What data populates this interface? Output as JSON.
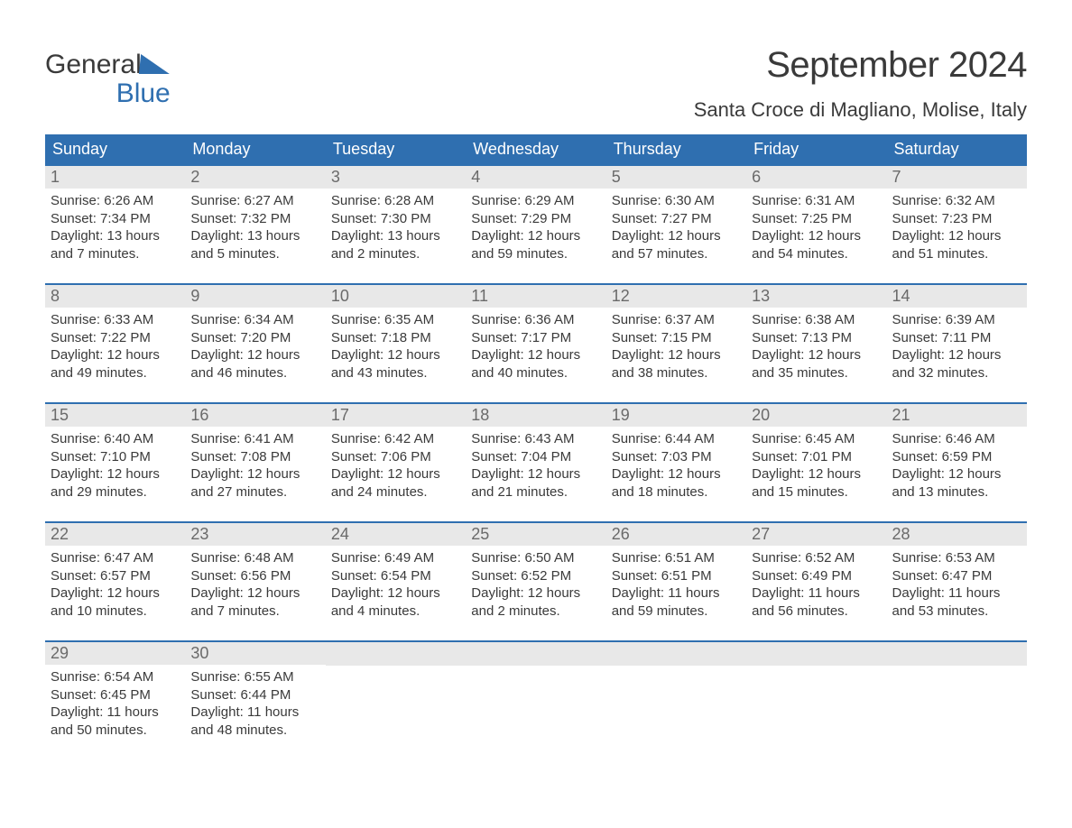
{
  "logo": {
    "top": "General",
    "bottom": "Blue"
  },
  "title": "September 2024",
  "location": "Santa Croce di Magliano, Molise, Italy",
  "colors": {
    "header_bg": "#2f6fb0",
    "header_fg": "#ffffff",
    "daynum_bg": "#e8e8e8",
    "daynum_fg": "#6a6a6a",
    "body_text": "#3a3a3a",
    "row_border": "#2f6fb0",
    "page_bg": "#ffffff"
  },
  "weekdays": [
    "Sunday",
    "Monday",
    "Tuesday",
    "Wednesday",
    "Thursday",
    "Friday",
    "Saturday"
  ],
  "days": [
    {
      "n": "1",
      "sunrise": "6:26 AM",
      "sunset": "7:34 PM",
      "dl1": "Daylight: 13 hours",
      "dl2": "and 7 minutes."
    },
    {
      "n": "2",
      "sunrise": "6:27 AM",
      "sunset": "7:32 PM",
      "dl1": "Daylight: 13 hours",
      "dl2": "and 5 minutes."
    },
    {
      "n": "3",
      "sunrise": "6:28 AM",
      "sunset": "7:30 PM",
      "dl1": "Daylight: 13 hours",
      "dl2": "and 2 minutes."
    },
    {
      "n": "4",
      "sunrise": "6:29 AM",
      "sunset": "7:29 PM",
      "dl1": "Daylight: 12 hours",
      "dl2": "and 59 minutes."
    },
    {
      "n": "5",
      "sunrise": "6:30 AM",
      "sunset": "7:27 PM",
      "dl1": "Daylight: 12 hours",
      "dl2": "and 57 minutes."
    },
    {
      "n": "6",
      "sunrise": "6:31 AM",
      "sunset": "7:25 PM",
      "dl1": "Daylight: 12 hours",
      "dl2": "and 54 minutes."
    },
    {
      "n": "7",
      "sunrise": "6:32 AM",
      "sunset": "7:23 PM",
      "dl1": "Daylight: 12 hours",
      "dl2": "and 51 minutes."
    },
    {
      "n": "8",
      "sunrise": "6:33 AM",
      "sunset": "7:22 PM",
      "dl1": "Daylight: 12 hours",
      "dl2": "and 49 minutes."
    },
    {
      "n": "9",
      "sunrise": "6:34 AM",
      "sunset": "7:20 PM",
      "dl1": "Daylight: 12 hours",
      "dl2": "and 46 minutes."
    },
    {
      "n": "10",
      "sunrise": "6:35 AM",
      "sunset": "7:18 PM",
      "dl1": "Daylight: 12 hours",
      "dl2": "and 43 minutes."
    },
    {
      "n": "11",
      "sunrise": "6:36 AM",
      "sunset": "7:17 PM",
      "dl1": "Daylight: 12 hours",
      "dl2": "and 40 minutes."
    },
    {
      "n": "12",
      "sunrise": "6:37 AM",
      "sunset": "7:15 PM",
      "dl1": "Daylight: 12 hours",
      "dl2": "and 38 minutes."
    },
    {
      "n": "13",
      "sunrise": "6:38 AM",
      "sunset": "7:13 PM",
      "dl1": "Daylight: 12 hours",
      "dl2": "and 35 minutes."
    },
    {
      "n": "14",
      "sunrise": "6:39 AM",
      "sunset": "7:11 PM",
      "dl1": "Daylight: 12 hours",
      "dl2": "and 32 minutes."
    },
    {
      "n": "15",
      "sunrise": "6:40 AM",
      "sunset": "7:10 PM",
      "dl1": "Daylight: 12 hours",
      "dl2": "and 29 minutes."
    },
    {
      "n": "16",
      "sunrise": "6:41 AM",
      "sunset": "7:08 PM",
      "dl1": "Daylight: 12 hours",
      "dl2": "and 27 minutes."
    },
    {
      "n": "17",
      "sunrise": "6:42 AM",
      "sunset": "7:06 PM",
      "dl1": "Daylight: 12 hours",
      "dl2": "and 24 minutes."
    },
    {
      "n": "18",
      "sunrise": "6:43 AM",
      "sunset": "7:04 PM",
      "dl1": "Daylight: 12 hours",
      "dl2": "and 21 minutes."
    },
    {
      "n": "19",
      "sunrise": "6:44 AM",
      "sunset": "7:03 PM",
      "dl1": "Daylight: 12 hours",
      "dl2": "and 18 minutes."
    },
    {
      "n": "20",
      "sunrise": "6:45 AM",
      "sunset": "7:01 PM",
      "dl1": "Daylight: 12 hours",
      "dl2": "and 15 minutes."
    },
    {
      "n": "21",
      "sunrise": "6:46 AM",
      "sunset": "6:59 PM",
      "dl1": "Daylight: 12 hours",
      "dl2": "and 13 minutes."
    },
    {
      "n": "22",
      "sunrise": "6:47 AM",
      "sunset": "6:57 PM",
      "dl1": "Daylight: 12 hours",
      "dl2": "and 10 minutes."
    },
    {
      "n": "23",
      "sunrise": "6:48 AM",
      "sunset": "6:56 PM",
      "dl1": "Daylight: 12 hours",
      "dl2": "and 7 minutes."
    },
    {
      "n": "24",
      "sunrise": "6:49 AM",
      "sunset": "6:54 PM",
      "dl1": "Daylight: 12 hours",
      "dl2": "and 4 minutes."
    },
    {
      "n": "25",
      "sunrise": "6:50 AM",
      "sunset": "6:52 PM",
      "dl1": "Daylight: 12 hours",
      "dl2": "and 2 minutes."
    },
    {
      "n": "26",
      "sunrise": "6:51 AM",
      "sunset": "6:51 PM",
      "dl1": "Daylight: 11 hours",
      "dl2": "and 59 minutes."
    },
    {
      "n": "27",
      "sunrise": "6:52 AM",
      "sunset": "6:49 PM",
      "dl1": "Daylight: 11 hours",
      "dl2": "and 56 minutes."
    },
    {
      "n": "28",
      "sunrise": "6:53 AM",
      "sunset": "6:47 PM",
      "dl1": "Daylight: 11 hours",
      "dl2": "and 53 minutes."
    },
    {
      "n": "29",
      "sunrise": "6:54 AM",
      "sunset": "6:45 PM",
      "dl1": "Daylight: 11 hours",
      "dl2": "and 50 minutes."
    },
    {
      "n": "30",
      "sunrise": "6:55 AM",
      "sunset": "6:44 PM",
      "dl1": "Daylight: 11 hours",
      "dl2": "and 48 minutes."
    }
  ],
  "labels": {
    "sunrise": "Sunrise: ",
    "sunset": "Sunset: "
  }
}
